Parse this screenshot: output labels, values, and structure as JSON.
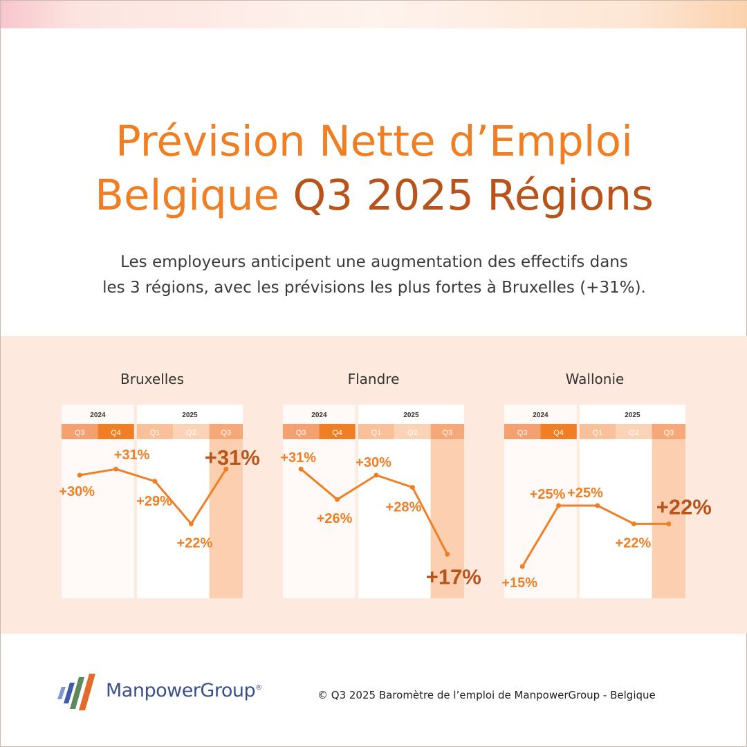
{
  "header": {
    "title_line1": "Prévision Nette d’Emploi",
    "title_line2_a": "Belgique ",
    "title_line2_b": "Q3 2025 Régions",
    "subtitle_line1": "Les employeurs anticipent une augmentation des effectifs dans",
    "subtitle_line2": "les 3 régions, avec les prévisions les plus fortes à Bruxelles (+31%)."
  },
  "colors": {
    "accent": "#f07e22",
    "accent_dark": "#b8531a",
    "band": "#fde9dd",
    "highlight": "#fccfb0"
  },
  "chart_data": [
    {
      "type": "line",
      "title": "Bruxelles",
      "years": [
        {
          "label": "2024",
          "quarters": [
            "Q3",
            "Q4"
          ]
        },
        {
          "label": "2025",
          "quarters": [
            "Q1",
            "Q2",
            "Q3"
          ]
        }
      ],
      "categories": [
        "Q3 2024",
        "Q4 2024",
        "Q1 2025",
        "Q2 2025",
        "Q3 2025"
      ],
      "values": [
        30,
        31,
        29,
        22,
        31
      ],
      "labels": [
        "+30%",
        "+31%",
        "+29%",
        "+22%",
        "+31%"
      ],
      "ylim": [
        10,
        35
      ],
      "highlight_last": true
    },
    {
      "type": "line",
      "title": "Flandre",
      "years": [
        {
          "label": "2024",
          "quarters": [
            "Q3",
            "Q4"
          ]
        },
        {
          "label": "2025",
          "quarters": [
            "Q1",
            "Q2",
            "Q3"
          ]
        }
      ],
      "categories": [
        "Q3 2024",
        "Q4 2024",
        "Q1 2025",
        "Q2 2025",
        "Q3 2025"
      ],
      "values": [
        31,
        26,
        30,
        28,
        17
      ],
      "labels": [
        "+31%",
        "+26%",
        "+30%",
        "+28%",
        "+17%"
      ],
      "ylim": [
        10,
        35
      ],
      "highlight_last": true
    },
    {
      "type": "line",
      "title": "Wallonie",
      "years": [
        {
          "label": "2024",
          "quarters": [
            "Q3",
            "Q4"
          ]
        },
        {
          "label": "2025",
          "quarters": [
            "Q1",
            "Q2",
            "Q3"
          ]
        }
      ],
      "categories": [
        "Q3 2024",
        "Q4 2024",
        "Q1 2025",
        "Q2 2025",
        "Q3 2025"
      ],
      "values": [
        15,
        25,
        25,
        22,
        22
      ],
      "labels": [
        "+15%",
        "+25%",
        "+25%",
        "+22%",
        "+22%"
      ],
      "ylim": [
        10,
        35
      ],
      "highlight_last": true
    }
  ],
  "footer": {
    "logo_text": "ManpowerGroup",
    "logo_mark": "®",
    "copyright": "© Q3 2025 Baromètre de l’emploi de ManpowerGroup - Belgique"
  }
}
